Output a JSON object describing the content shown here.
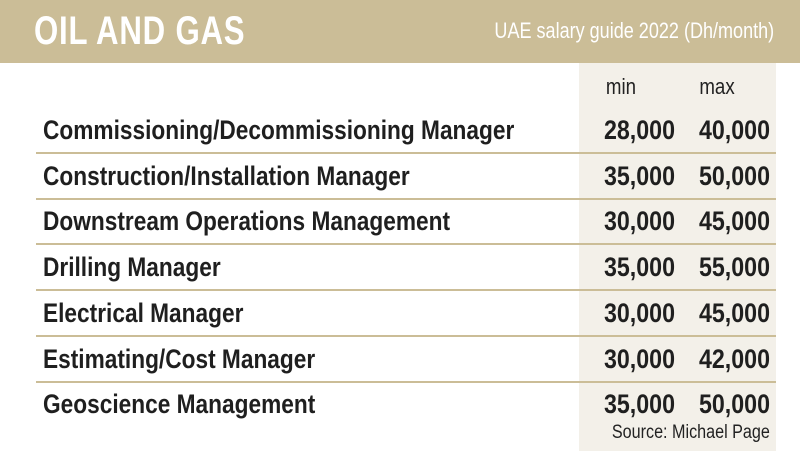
{
  "header": {
    "title": "OIL AND GAS",
    "subtitle": "UAE salary guide 2022 (Dh/month)"
  },
  "columns": {
    "min": "min",
    "max": "max"
  },
  "source": "Source: Michael Page",
  "colors": {
    "header_bg": "#cbbd97",
    "value_column_bg": "#f3f0e9",
    "divider": "#cbbd97"
  },
  "chart_data": {
    "type": "table",
    "title": "OIL AND GAS",
    "subtitle": "UAE salary guide 2022 (Dh/month)",
    "columns": [
      "min",
      "max"
    ],
    "rows": [
      {
        "label": "Commissioning/Decommissioning Manager",
        "min": "28,000",
        "max": "40,000"
      },
      {
        "label": "Construction/Installation Manager",
        "min": "35,000",
        "max": "50,000"
      },
      {
        "label": "Downstream Operations Management",
        "min": "30,000",
        "max": "45,000"
      },
      {
        "label": "Drilling Manager",
        "min": "35,000",
        "max": "55,000"
      },
      {
        "label": "Electrical Manager",
        "min": "30,000",
        "max": "45,000"
      },
      {
        "label": "Estimating/Cost Manager",
        "min": "30,000",
        "max": "42,000"
      },
      {
        "label": "Geoscience Management",
        "min": "35,000",
        "max": "50,000"
      }
    ],
    "source": "Source: Michael Page"
  }
}
